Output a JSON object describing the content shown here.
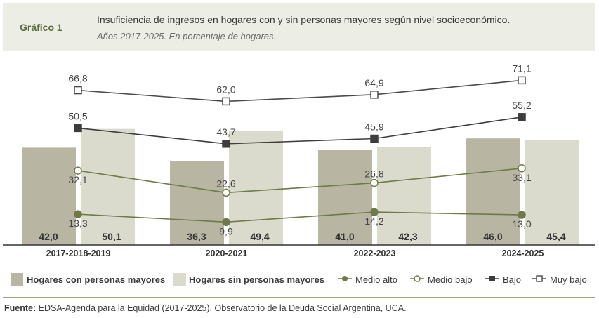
{
  "header": {
    "label": "Gráfico 1",
    "title": "Insuficiencia de ingresos en hogares con y sin personas mayores según nivel socioeconómico.",
    "subtitle": "Años 2017-2025. En porcentaje de hogares."
  },
  "legend": {
    "con": "Hogares con personas mayores",
    "sin": "Hogares sin personas mayores",
    "medio_alto": "Medio alto",
    "medio_bajo": "Medio bajo",
    "bajo": "Bajo",
    "muy_bajo": "Muy bajo"
  },
  "source": {
    "label": "Fuente:",
    "text": " EDSA-Agenda para la Equidad (2017-2025), Observatorio de la Deuda Social Argentina, UCA."
  },
  "colors": {
    "bar_con": "#b8b5a3",
    "bar_sin": "#dadacd",
    "medio_alto": "#6e7a4a",
    "lines": "#4a4a4a",
    "bajo": "#3d3d3d",
    "header_bg": "#eceee6"
  },
  "chart_data": {
    "type": "bar",
    "categories": [
      "2017-2018-2019",
      "2020-2021",
      "2022-2023",
      "2024-2025"
    ],
    "ylim": [
      0,
      80
    ],
    "bars": [
      {
        "name": "Hogares con personas mayores",
        "values": [
          42.0,
          36.3,
          41.0,
          46.0
        ],
        "labels": [
          "42,0",
          "36,3",
          "41,0",
          "46,0"
        ]
      },
      {
        "name": "Hogares sin personas mayores",
        "values": [
          50.1,
          49.4,
          42.3,
          45.4
        ],
        "labels": [
          "50,1",
          "49,4",
          "42,3",
          "45,4"
        ]
      }
    ],
    "lines": [
      {
        "name": "Medio alto",
        "marker": "filled-circle",
        "values": [
          13.3,
          9.9,
          14.2,
          13.0
        ],
        "labels": [
          "13,3",
          "9,9",
          "14,2",
          "13,0"
        ]
      },
      {
        "name": "Medio bajo",
        "marker": "open-circle",
        "values": [
          32.1,
          22.6,
          26.8,
          33.1
        ],
        "labels": [
          "32,1",
          "22,6",
          "26,8",
          "33,1"
        ]
      },
      {
        "name": "Bajo",
        "marker": "filled-square",
        "values": [
          50.5,
          43.7,
          45.9,
          55.2
        ],
        "labels": [
          "50,5",
          "43,7",
          "45,9",
          "55,2"
        ]
      },
      {
        "name": "Muy bajo",
        "marker": "open-square",
        "values": [
          66.8,
          62.0,
          64.9,
          71.1
        ],
        "labels": [
          "66,8",
          "62,0",
          "64,9",
          "71,1"
        ]
      }
    ]
  }
}
